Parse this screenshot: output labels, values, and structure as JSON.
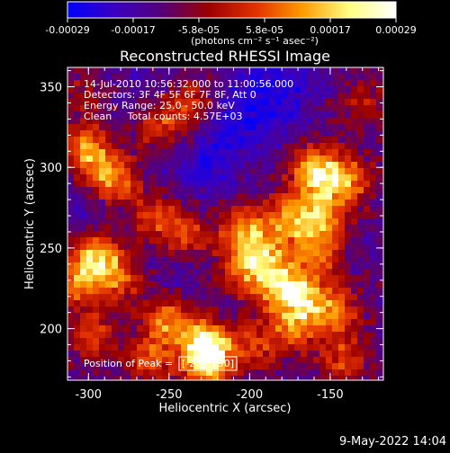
{
  "chart_data": {
    "type": "heatmap",
    "title": "Reconstructed RHESSI Image",
    "xlabel": "Heliocentric X (arcsec)",
    "ylabel": "Heliocentric Y (arcsec)",
    "xlim": [
      -313,
      -117
    ],
    "ylim": [
      168,
      362
    ],
    "x_ticks": [
      -300,
      -250,
      -200,
      -150
    ],
    "y_ticks": [
      200,
      250,
      300,
      350
    ],
    "colorbar": {
      "ticks": [
        "-0.00029",
        "-0.00017",
        "-5.8e-05",
        "5.8e-05",
        "0.00017",
        "0.00029"
      ],
      "unit_label": "(photons cm⁻² s⁻¹ asec⁻²)",
      "range": [
        -0.00029,
        0.00029
      ],
      "colors": [
        "#0000ff",
        "#3a00c0",
        "#55007a",
        "#9a0000",
        "#e23000",
        "#ff9a00",
        "#ffff80",
        "#ffffff"
      ]
    },
    "annotations": [
      "14-Jul-2010 10:56:32.000 to 11:00:56.000",
      "Detectors: 3F 4F 5F 6F 7F 8F, Att 0",
      "Energy Range: 25.0 - 50.0 keV",
      "Clean     Total counts: 4.57E+03"
    ],
    "peak": {
      "label": "Position of Peak = ",
      "value": "[-227,190]",
      "x": -227,
      "y": 190
    },
    "emission_sources": [
      {
        "x": -300,
        "y": 310,
        "strength": 0.75
      },
      {
        "x": -285,
        "y": 292,
        "strength": 0.7
      },
      {
        "x": -255,
        "y": 325,
        "strength": 0.55
      },
      {
        "x": -235,
        "y": 340,
        "strength": 0.45
      },
      {
        "x": -295,
        "y": 245,
        "strength": 0.85
      },
      {
        "x": -308,
        "y": 228,
        "strength": 0.6
      },
      {
        "x": -280,
        "y": 230,
        "strength": 0.5
      },
      {
        "x": -260,
        "y": 270,
        "strength": 0.45
      },
      {
        "x": -240,
        "y": 258,
        "strength": 0.5
      },
      {
        "x": -205,
        "y": 262,
        "strength": 0.6
      },
      {
        "x": -190,
        "y": 248,
        "strength": 0.55
      },
      {
        "x": -175,
        "y": 270,
        "strength": 0.6
      },
      {
        "x": -158,
        "y": 250,
        "strength": 0.65
      },
      {
        "x": -160,
        "y": 298,
        "strength": 0.8
      },
      {
        "x": -140,
        "y": 292,
        "strength": 0.7
      },
      {
        "x": -155,
        "y": 272,
        "strength": 0.55
      },
      {
        "x": -182,
        "y": 226,
        "strength": 0.75
      },
      {
        "x": -165,
        "y": 222,
        "strength": 0.6
      },
      {
        "x": -205,
        "y": 236,
        "strength": 0.55
      },
      {
        "x": -170,
        "y": 202,
        "strength": 0.6
      },
      {
        "x": -145,
        "y": 210,
        "strength": 0.55
      },
      {
        "x": -195,
        "y": 190,
        "strength": 0.5
      },
      {
        "x": -227,
        "y": 190,
        "strength": 1.0
      },
      {
        "x": -250,
        "y": 205,
        "strength": 0.7
      },
      {
        "x": -262,
        "y": 180,
        "strength": 0.55
      },
      {
        "x": -225,
        "y": 175,
        "strength": 0.6
      },
      {
        "x": -298,
        "y": 196,
        "strength": 0.5
      },
      {
        "x": -140,
        "y": 180,
        "strength": 0.5
      },
      {
        "x": -130,
        "y": 340,
        "strength": 0.35
      },
      {
        "x": -302,
        "y": 345,
        "strength": 0.3
      }
    ],
    "negative_sources": [
      {
        "x": -205,
        "y": 330,
        "strength": 0.9
      },
      {
        "x": -180,
        "y": 350,
        "strength": 0.8
      },
      {
        "x": -228,
        "y": 302,
        "strength": 0.7
      },
      {
        "x": -270,
        "y": 350,
        "strength": 0.35
      },
      {
        "x": -245,
        "y": 235,
        "strength": 0.3
      },
      {
        "x": -300,
        "y": 270,
        "strength": 0.45
      }
    ]
  },
  "footer": {
    "date": "9-May-2022 14:04"
  }
}
